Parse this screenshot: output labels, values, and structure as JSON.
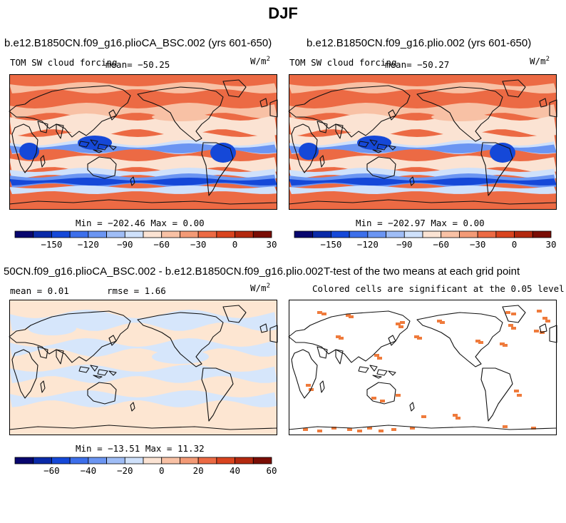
{
  "figure": {
    "title": "DJF"
  },
  "panels": [
    {
      "id": "top-left",
      "title": "b.e12.B1850CN.f09_g16.plioCA_BSC.002 (yrs 601-650)",
      "left_label": "TOM SW cloud forcing",
      "mean_label": "mean= −50.25",
      "units": "W/m",
      "units_sup": "2",
      "minmax": "Min = −202.46 Max =   0.00"
    },
    {
      "id": "top-right",
      "title": "b.e12.B1850CN.f09_g16.plio.002 (yrs 601-650)",
      "left_label": "TOM SW cloud forcing",
      "mean_label": "mean= −50.27",
      "units": "W/m",
      "units_sup": "2",
      "minmax": "Min = −202.97 Max =   0.00"
    },
    {
      "id": "bottom-left",
      "title": "50CN.f09_g16.plioCA_BSC.002 - b.e12.B1850CN.f09_g16.plio.002",
      "mean_label": "mean =   0.01",
      "rmse_label": "rmse =   1.66",
      "units": "W/m",
      "units_sup": "2",
      "minmax": "Min = −13.51 Max =  11.32"
    },
    {
      "id": "bottom-right",
      "title": "T-test of the two means at each grid point",
      "subtitle": "Colored cells are significant at the 0.05 level"
    }
  ],
  "colorbars": {
    "forcing": {
      "colors": [
        "#08066e",
        "#0a2aa8",
        "#1548d8",
        "#3d6fea",
        "#6b95f2",
        "#9fbdf6",
        "#cfe1fb",
        "#fbe3d3",
        "#f8c1a5",
        "#f39a76",
        "#ec6a44",
        "#d9441f",
        "#b3290f",
        "#7a0d05"
      ],
      "tick_labels": [
        "−150",
        "−120",
        "−90",
        "−60",
        "−30",
        "0",
        "30"
      ]
    },
    "difference": {
      "colors": [
        "#08066e",
        "#0a2aa8",
        "#1548d8",
        "#3d6fea",
        "#6b95f2",
        "#9fbdf6",
        "#cfe1fb",
        "#fbe3d3",
        "#f8c1a5",
        "#f39a76",
        "#ec6a44",
        "#d9441f",
        "#b3290f",
        "#7a0d05"
      ],
      "tick_labels": [
        "−60",
        "−40",
        "−20",
        "0",
        "20",
        "40",
        "60"
      ]
    }
  },
  "map_colors": {
    "ocean_high": "#ec6a44",
    "mid": "#f8c1a5",
    "pale": "#fbe3d3",
    "light_blue": "#cfe1fb",
    "blue": "#6b95f2",
    "deep_blue": "#1548d8",
    "diff_pos": "#fde6d2",
    "diff_neg": "#d6e6fb",
    "signif": "#ef7b3c"
  }
}
